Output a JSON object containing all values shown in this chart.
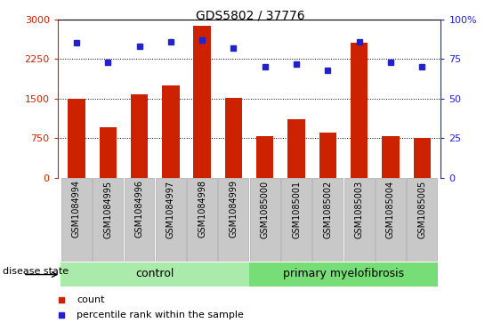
{
  "title": "GDS5802 / 37776",
  "samples": [
    "GSM1084994",
    "GSM1084995",
    "GSM1084996",
    "GSM1084997",
    "GSM1084998",
    "GSM1084999",
    "GSM1085000",
    "GSM1085001",
    "GSM1085002",
    "GSM1085003",
    "GSM1085004",
    "GSM1085005"
  ],
  "counts": [
    1500,
    950,
    1580,
    1750,
    2880,
    1520,
    780,
    1100,
    850,
    2550,
    780,
    760
  ],
  "percentiles": [
    85,
    73,
    83,
    86,
    87,
    82,
    70,
    72,
    68,
    86,
    73,
    70
  ],
  "bar_color": "#cc2200",
  "dot_color": "#2222cc",
  "left_ylim": [
    0,
    3000
  ],
  "right_ylim": [
    0,
    100
  ],
  "left_yticks": [
    0,
    750,
    1500,
    2250,
    3000
  ],
  "right_yticks": [
    0,
    25,
    50,
    75,
    100
  ],
  "grid_lines": [
    750,
    1500,
    2250
  ],
  "control_color": "#aaeaaa",
  "disease_color": "#77dd77",
  "tick_bg_color": "#c8c8c8",
  "tick_border_color": "#aaaaaa",
  "legend_count_label": "count",
  "legend_pct_label": "percentile rank within the sample",
  "disease_state_label": "disease state",
  "group_labels": [
    "control",
    "primary myelofibrosis"
  ],
  "n_control": 6,
  "title_fontsize": 10,
  "axis_fontsize": 8,
  "tick_fontsize": 7,
  "group_fontsize": 9
}
